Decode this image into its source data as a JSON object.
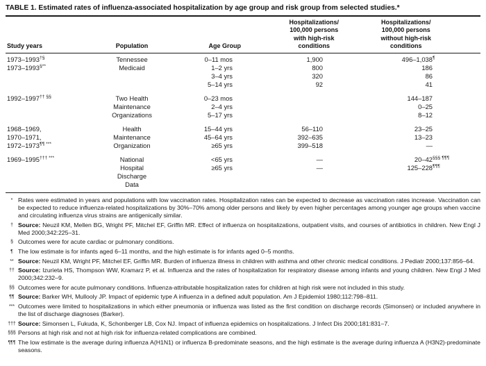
{
  "title": "TABLE 1. Estimated rates of influenza-associated hospitalization by age group and risk group from selected studies.*",
  "colors": {
    "text": "#1a1a1a",
    "background": "#ffffff",
    "rule": "#1a1a1a"
  },
  "table": {
    "columns": [
      {
        "label": "Study years"
      },
      {
        "label": "Population"
      },
      {
        "label": "Age Group"
      },
      {
        "label": "Hospitalizations/\n100,000 persons\nwith high-risk\nconditions"
      },
      {
        "label": "Hospitalizations/\n100,000 persons\nwithout high-risk\nconditions"
      }
    ],
    "groups": [
      {
        "rows": [
          [
            {
              "t": "1973–1993",
              "s": "†§"
            },
            {
              "t": "Tennessee"
            },
            {
              "t": "0–11 mos"
            },
            {
              "t": "1,900"
            },
            {
              "t": "496–1,038",
              "s": "¶"
            }
          ],
          [
            {
              "t": "1973–1993",
              "s": "§**"
            },
            {
              "t": "Medicaid"
            },
            {
              "t": "1–2 yrs"
            },
            {
              "t": "800"
            },
            {
              "t": "186"
            }
          ],
          [
            null,
            null,
            {
              "t": "3–4 yrs"
            },
            {
              "t": "320"
            },
            {
              "t": "86"
            }
          ],
          [
            null,
            null,
            {
              "t": "5–14 yrs"
            },
            {
              "t": "92"
            },
            {
              "t": "41"
            }
          ]
        ]
      },
      {
        "rows": [
          [
            {
              "t": "1992–1997",
              "s": "†† §§"
            },
            {
              "t": "Two Health"
            },
            {
              "t": "0–23 mos"
            },
            null,
            {
              "t": "144–187"
            }
          ],
          [
            null,
            {
              "t": "Maintenance"
            },
            {
              "t": "2–4 yrs"
            },
            null,
            {
              "t": "0–25"
            }
          ],
          [
            null,
            {
              "t": "Organizations"
            },
            {
              "t": "5–17 yrs"
            },
            null,
            {
              "t": "8–12"
            }
          ]
        ]
      },
      {
        "rows": [
          [
            {
              "t": "1968–1969,"
            },
            {
              "t": "Health"
            },
            {
              "t": "15–44 yrs"
            },
            {
              "t": "56–110"
            },
            {
              "t": "23–25"
            }
          ],
          [
            {
              "t": "1970–1971,"
            },
            {
              "t": "Maintenance"
            },
            {
              "t": "45–64 yrs"
            },
            {
              "t": "392–635"
            },
            {
              "t": "13–23"
            }
          ],
          [
            {
              "t": "1972–1973",
              "s": "¶¶ ***"
            },
            {
              "t": "Organization"
            },
            {
              "t": "≥65 yrs"
            },
            {
              "t": "399–518"
            },
            {
              "t": "—"
            }
          ]
        ]
      },
      {
        "rows": [
          [
            {
              "t": "1969–1995",
              "s": "††† ***"
            },
            {
              "t": "National"
            },
            {
              "t": "<65 yrs"
            },
            {
              "t": "—"
            },
            {
              "t": "20–42",
              "s": "§§§ ¶¶¶"
            }
          ],
          [
            null,
            {
              "t": "Hospital"
            },
            {
              "t": "≥65 yrs"
            },
            {
              "t": "—"
            },
            {
              "t": "125–228",
              "s": "¶¶¶"
            }
          ],
          [
            null,
            {
              "t": "Discharge"
            },
            null,
            null,
            null
          ],
          [
            null,
            {
              "t": "Data"
            },
            null,
            null,
            null
          ]
        ]
      }
    ]
  },
  "footnotes": [
    {
      "marker": "*",
      "text": "Rates were estimated in years and populations with low vaccination rates. Hospitalization rates can be expected to decrease as vaccination rates increase. Vaccination can be expected to reduce influenza-related hospitalizations by 30%–70% among older persons and likely by even higher percentages among younger age groups when vaccine and circulating influenza virus strains are antigenically similar."
    },
    {
      "marker": "†",
      "bold": "Source:",
      "text": "Neuzil KM, Mellen BG, Wright PF, Mitchel EF, Griffin MR. Effect of influenza on hospitalizations, outpatient visits, and courses of antibiotics in children. New Engl J Med 2000;342:225–31."
    },
    {
      "marker": "§",
      "text": "Outcomes were for acute cardiac or pulmonary conditions."
    },
    {
      "marker": "¶",
      "text": "The low estimate is for infants aged 6–11 months, and the high estimate is for infants aged 0–5 months."
    },
    {
      "marker": "**",
      "bold": "Source:",
      "text": "Neuzil KM, Wright PF, Mitchel EF, Griffin MR. Burden of influenza illness in children with asthma and other chronic medical conditions. J Pediatr 2000;137:856–64."
    },
    {
      "marker": "††",
      "bold": "Source:",
      "text": "Izurieta HS, Thompson WW, Kramarz P, et al. Influenza and the rates of hospitalization for respiratory disease among infants and young children. New Engl J Med 2000;342:232–9."
    },
    {
      "marker": "§§",
      "text": "Outcomes were for acute pulmonary conditions. Influenza-attributable hospitalization rates for children at high risk were not included in this study."
    },
    {
      "marker": "¶¶",
      "bold": "Source:",
      "text": "Barker WH, Mullooly JP. Impact of epidemic type A influenza in a defined adult population. Am J Epidemiol 1980;112:798–811."
    },
    {
      "marker": "***",
      "text": "Outcomes were limited to hospitalizations in which either pneumonia or influenza was listed as the first condition on discharge records (Simonsen) or included anywhere in the list of discharge diagnoses (Barker)."
    },
    {
      "marker": "†††",
      "bold": "Source:",
      "text": "Simonsen L, Fukuda, K, Schonberger LB, Cox NJ. Impact of influenza epidemics on hospitalizations. J Infect Dis 2000;181:831–7."
    },
    {
      "marker": "§§§",
      "text": "Persons at high risk and not at high risk for influenza-related complications are combined."
    },
    {
      "marker": "¶¶¶",
      "text": "The low estimate is the average during influenza A(H1N1) or influenza B-predominate seasons, and the high estimate is the average during influenza A (H3N2)-predominate seasons."
    }
  ]
}
